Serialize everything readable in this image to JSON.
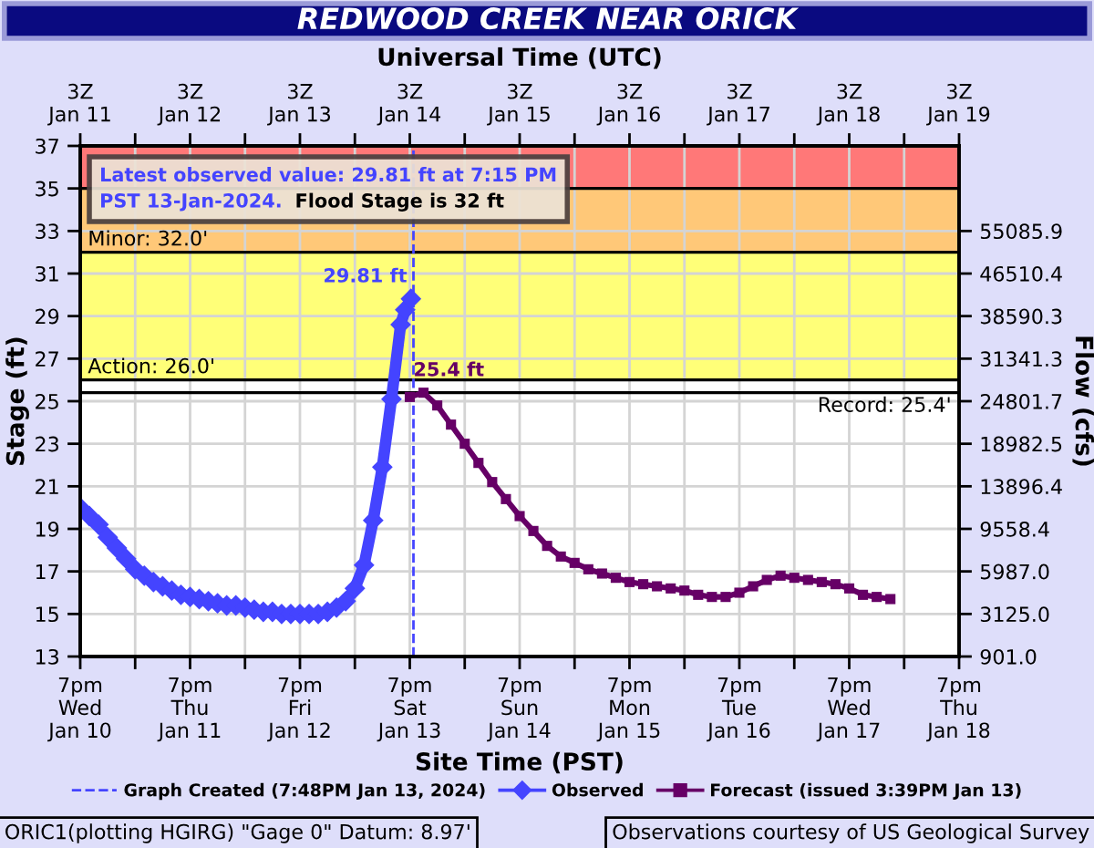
{
  "chart_data": {
    "type": "line",
    "title": "REDWOOD CREEK NEAR ORICK",
    "xlabel": "Site Time (PST)",
    "x2label": "Universal Time (UTC)",
    "ylabel": "Stage (ft)",
    "y2label": "Flow (cfs)",
    "series": [
      {
        "name": "Observed",
        "color": "#4444ff",
        "marker": "diamond",
        "x": [
          "2024-01-10T19:00",
          "2024-01-10T21:00",
          "2024-01-10T23:00",
          "2024-01-11T01:00",
          "2024-01-11T03:00",
          "2024-01-11T05:00",
          "2024-01-11T07:00",
          "2024-01-11T09:00",
          "2024-01-11T11:00",
          "2024-01-11T13:00",
          "2024-01-11T15:00",
          "2024-01-11T17:00",
          "2024-01-11T19:00",
          "2024-01-11T21:00",
          "2024-01-11T23:00",
          "2024-01-12T01:00",
          "2024-01-12T03:00",
          "2024-01-12T05:00",
          "2024-01-12T07:00",
          "2024-01-12T09:00",
          "2024-01-12T11:00",
          "2024-01-12T13:00",
          "2024-01-12T15:00",
          "2024-01-12T17:00",
          "2024-01-12T19:00",
          "2024-01-12T21:00",
          "2024-01-12T23:00",
          "2024-01-13T01:00",
          "2024-01-13T03:00",
          "2024-01-13T05:00",
          "2024-01-13T07:00",
          "2024-01-13T09:00",
          "2024-01-13T11:00",
          "2024-01-13T13:00",
          "2024-01-13T15:00",
          "2024-01-13T17:00",
          "2024-01-13T18:00",
          "2024-01-13T19:15"
        ],
        "values": [
          20.0,
          19.6,
          19.2,
          18.6,
          18.1,
          17.6,
          17.1,
          16.8,
          16.5,
          16.3,
          16.1,
          15.9,
          15.8,
          15.7,
          15.6,
          15.5,
          15.4,
          15.4,
          15.3,
          15.2,
          15.1,
          15.1,
          15.0,
          15.0,
          15.0,
          15.0,
          15.0,
          15.1,
          15.3,
          15.6,
          16.2,
          17.3,
          19.4,
          21.9,
          25.1,
          28.6,
          29.3,
          29.81
        ]
      },
      {
        "name": "Forecast (issued 3:39PM Jan 13)",
        "color": "#660066",
        "marker": "square",
        "x": [
          "2024-01-13T19:00",
          "2024-01-13T22:00",
          "2024-01-14T01:00",
          "2024-01-14T04:00",
          "2024-01-14T07:00",
          "2024-01-14T10:00",
          "2024-01-14T13:00",
          "2024-01-14T16:00",
          "2024-01-14T19:00",
          "2024-01-14T22:00",
          "2024-01-15T01:00",
          "2024-01-15T04:00",
          "2024-01-15T07:00",
          "2024-01-15T10:00",
          "2024-01-15T13:00",
          "2024-01-15T16:00",
          "2024-01-15T19:00",
          "2024-01-15T22:00",
          "2024-01-16T01:00",
          "2024-01-16T04:00",
          "2024-01-16T07:00",
          "2024-01-16T10:00",
          "2024-01-16T13:00",
          "2024-01-16T16:00",
          "2024-01-16T19:00",
          "2024-01-16T22:00",
          "2024-01-17T01:00",
          "2024-01-17T04:00",
          "2024-01-17T07:00",
          "2024-01-17T10:00",
          "2024-01-17T13:00",
          "2024-01-17T16:00",
          "2024-01-17T19:00",
          "2024-01-17T22:00",
          "2024-01-18T01:00",
          "2024-01-18T04:00"
        ],
        "values": [
          25.2,
          25.4,
          24.8,
          23.9,
          23.0,
          22.1,
          21.2,
          20.4,
          19.6,
          18.9,
          18.2,
          17.7,
          17.4,
          17.1,
          16.9,
          16.7,
          16.5,
          16.4,
          16.3,
          16.2,
          16.1,
          15.9,
          15.8,
          15.8,
          16.0,
          16.3,
          16.6,
          16.8,
          16.7,
          16.6,
          16.5,
          16.4,
          16.2,
          15.9,
          15.8,
          15.7
        ]
      }
    ],
    "xlim": [
      "2024-01-10T19:00",
      "2024-01-18T19:00"
    ],
    "xticks": [
      {
        "value": "2024-01-10T19:00",
        "label": "7pm\nWed\nJan 10"
      },
      {
        "value": "2024-01-11T07:00",
        "label": null
      },
      {
        "value": "2024-01-11T19:00",
        "label": "7pm\nThu\nJan 11"
      },
      {
        "value": "2024-01-12T07:00",
        "label": null
      },
      {
        "value": "2024-01-12T19:00",
        "label": "7pm\nFri\nJan 12"
      },
      {
        "value": "2024-01-13T07:00",
        "label": null
      },
      {
        "value": "2024-01-13T19:00",
        "label": "7pm\nSat\nJan 13"
      },
      {
        "value": "2024-01-14T07:00",
        "label": null
      },
      {
        "value": "2024-01-14T19:00",
        "label": "7pm\nSun\nJan 14"
      },
      {
        "value": "2024-01-15T07:00",
        "label": null
      },
      {
        "value": "2024-01-15T19:00",
        "label": "7pm\nMon\nJan 15"
      },
      {
        "value": "2024-01-16T07:00",
        "label": null
      },
      {
        "value": "2024-01-16T19:00",
        "label": "7pm\nTue\nJan 16"
      },
      {
        "value": "2024-01-17T07:00",
        "label": null
      },
      {
        "value": "2024-01-17T19:00",
        "label": "7pm\nWed\nJan 17"
      },
      {
        "value": "2024-01-18T07:00",
        "label": null
      },
      {
        "value": "2024-01-18T19:00",
        "label": "7pm\nThu\nJan 18"
      }
    ],
    "x2lim": [
      "2024-01-11T03:00",
      "2024-01-19T03:00"
    ],
    "x2ticks": [
      {
        "value": "2024-01-11T03:00",
        "label": "3Z\nJan 11"
      },
      {
        "value": "2024-01-11T15:00",
        "label": null
      },
      {
        "value": "2024-01-12T03:00",
        "label": "3Z\nJan 12"
      },
      {
        "value": "2024-01-12T15:00",
        "label": null
      },
      {
        "value": "2024-01-13T03:00",
        "label": "3Z\nJan 13"
      },
      {
        "value": "2024-01-13T15:00",
        "label": null
      },
      {
        "value": "2024-01-14T03:00",
        "label": "3Z\nJan 14"
      },
      {
        "value": "2024-01-14T15:00",
        "label": null
      },
      {
        "value": "2024-01-15T03:00",
        "label": "3Z\nJan 15"
      },
      {
        "value": "2024-01-15T15:00",
        "label": null
      },
      {
        "value": "2024-01-16T03:00",
        "label": "3Z\nJan 16"
      },
      {
        "value": "2024-01-16T15:00",
        "label": null
      },
      {
        "value": "2024-01-17T03:00",
        "label": "3Z\nJan 17"
      },
      {
        "value": "2024-01-17T15:00",
        "label": null
      },
      {
        "value": "2024-01-18T03:00",
        "label": "3Z\nJan 18"
      },
      {
        "value": "2024-01-18T15:00",
        "label": null
      },
      {
        "value": "2024-01-19T03:00",
        "label": "3Z\nJan 19"
      }
    ],
    "ylim": [
      13,
      37
    ],
    "yticks": [
      13,
      15,
      17,
      19,
      21,
      23,
      25,
      27,
      29,
      31,
      33,
      35,
      37
    ],
    "y2_categories": [
      null,
      null,
      "55085.9",
      "46510.4",
      "38590.3",
      "31341.3",
      "24801.7",
      "18982.5",
      "13896.4",
      "9558.4",
      "5987.0",
      "3125.0",
      "901.0"
    ],
    "bands": [
      {
        "axis": "y",
        "from": 35,
        "to": 37,
        "color": "#ff7878"
      },
      {
        "axis": "y",
        "from": 32,
        "to": 35,
        "color": "#ffc878"
      },
      {
        "axis": "y",
        "from": 26,
        "to": 32,
        "color": "#ffff78"
      }
    ],
    "ref_lines": [
      {
        "axis": "y",
        "value": 35,
        "color": "#000000"
      },
      {
        "axis": "y",
        "value": 32,
        "label": "Minor: 32.0'",
        "color": "#000000"
      },
      {
        "axis": "y",
        "value": 26,
        "label": "Action: 26.0'",
        "color": "#000000"
      },
      {
        "axis": "y",
        "value": 25.4,
        "label": "Record: 25.4'",
        "color": "#000000"
      },
      {
        "axis": "x",
        "value": "2024-01-13T19:48",
        "label": "Graph Created (7:48PM Jan 13, 2024)",
        "color": "#4444ff",
        "line_style": "dashed"
      }
    ],
    "annotations": [
      "Latest observed value: 29.81 ft at 7:15 PM",
      "PST 13-Jan-2024.",
      "Flood Stage is 32 ft",
      {
        "text": "29.81 ft",
        "x": "2024-01-13T19:15",
        "y": 29.81
      },
      {
        "text": "25.4 ft",
        "x": "2024-01-13T22:00",
        "y": 25.4
      },
      "ORIC1(plotting HGIRG) \"Gage 0\" Datum: 8.97'",
      "Observations courtesy of US Geological Survey"
    ],
    "grid": true,
    "legend": "bottom"
  }
}
